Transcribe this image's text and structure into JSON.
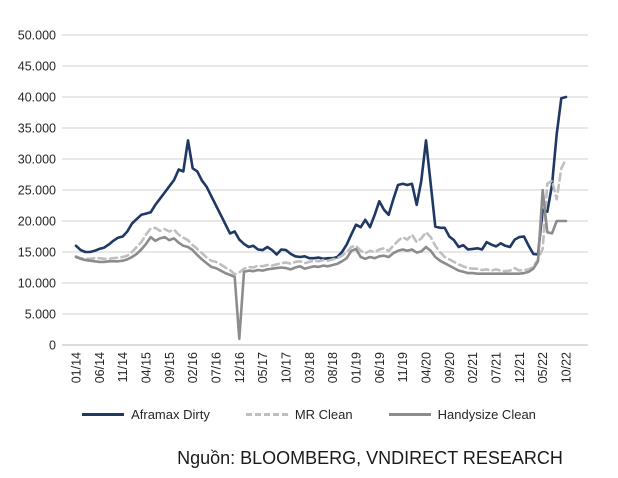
{
  "caption": {
    "text": "Nguồn: BLOOMBERG, VNDIRECT RESEARCH"
  },
  "colors": {
    "grid": "#d9d9d9",
    "baseline": "#c6c6c6",
    "axis_text": "#262626",
    "aframax": "#1f3864",
    "mr_clean": "#bfbfbf",
    "handysize": "#8c8c8c"
  },
  "chart_data": {
    "type": "line",
    "title": "",
    "xlabel": "",
    "ylabel": "",
    "ylim": [
      0,
      50000
    ],
    "grid": "horizontal",
    "legend_position": "bottom",
    "y_tick_values": [
      0,
      5000,
      10000,
      15000,
      20000,
      25000,
      30000,
      35000,
      40000,
      45000,
      50000
    ],
    "y_tick_labels": [
      "0",
      "5.000",
      "10.000",
      "15.000",
      "20.000",
      "25.000",
      "30.000",
      "35.000",
      "40.000",
      "45.000",
      "50.000"
    ],
    "x_tick_step": 5,
    "n_points": 106,
    "x_tick_labels": [
      "01/14",
      "06/14",
      "11/14",
      "04/15",
      "09/15",
      "02/16",
      "07/16",
      "12/16",
      "05/17",
      "10/17",
      "03/18",
      "08/18",
      "01/19",
      "06/19",
      "11/19",
      "04/20",
      "09/20",
      "02/21",
      "07/21",
      "12/21",
      "05/22",
      "10/22"
    ],
    "series": [
      {
        "name": "Aframax Dirty",
        "color": "#1f3864",
        "dash": "solid",
        "values": [
          16000,
          15300,
          15000,
          15000,
          15200,
          15500,
          15700,
          16200,
          16800,
          17300,
          17500,
          18300,
          19600,
          20300,
          21000,
          21200,
          21400,
          22600,
          23600,
          24600,
          25600,
          26600,
          28300,
          28000,
          33000,
          28500,
          28000,
          26500,
          25500,
          24000,
          22500,
          21000,
          19500,
          18000,
          18300,
          17000,
          16300,
          15800,
          16000,
          15400,
          15300,
          15800,
          15300,
          14600,
          15400,
          15300,
          14700,
          14300,
          14200,
          14300,
          14000,
          14000,
          14100,
          13900,
          14000,
          14000,
          14200,
          15000,
          16200,
          17800,
          19400,
          19000,
          20200,
          19000,
          21000,
          23200,
          21800,
          21000,
          23500,
          25800,
          26000,
          25800,
          26000,
          22600,
          26500,
          33000,
          26000,
          19100,
          18900,
          18900,
          17500,
          16900,
          15800,
          16100,
          15400,
          15500,
          15600,
          15400,
          16600,
          16200,
          15900,
          16400,
          16000,
          15800,
          17000,
          17400,
          17500,
          16000,
          14700,
          14600,
          21800,
          21500,
          25800,
          34000,
          39800,
          40000
        ]
      },
      {
        "name": "MR Clean",
        "color": "#bfbfbf",
        "dash": "dashed",
        "values": [
          14300,
          14000,
          13900,
          13900,
          14000,
          14000,
          13900,
          13900,
          14000,
          14100,
          14200,
          14400,
          15000,
          15800,
          16600,
          17800,
          18800,
          18900,
          18400,
          18700,
          18300,
          18600,
          17800,
          17300,
          16900,
          16100,
          15500,
          14800,
          14100,
          13600,
          13400,
          13000,
          12500,
          12100,
          11400,
          11700,
          12300,
          12600,
          12500,
          12800,
          12700,
          12900,
          12800,
          13000,
          13200,
          13300,
          13100,
          13400,
          13500,
          13200,
          13400,
          13600,
          13500,
          13700,
          13600,
          13800,
          14000,
          14400,
          15000,
          15800,
          16000,
          15200,
          14800,
          15200,
          15000,
          15400,
          15600,
          15200,
          16000,
          16800,
          17400,
          17000,
          17800,
          16600,
          17200,
          18200,
          17400,
          16000,
          15000,
          14200,
          13800,
          13400,
          13000,
          12700,
          12400,
          12300,
          12300,
          12100,
          12200,
          12000,
          12200,
          12000,
          11900,
          12000,
          12400,
          12000,
          12100,
          12200,
          12600,
          13800,
          15500,
          26000,
          26500,
          23500,
          28500,
          30000
        ]
      },
      {
        "name": "Handysize Clean",
        "color": "#8c8c8c",
        "dash": "solid",
        "values": [
          14200,
          13900,
          13700,
          13600,
          13500,
          13400,
          13400,
          13500,
          13500,
          13500,
          13600,
          13800,
          14200,
          14700,
          15400,
          16300,
          17400,
          16800,
          17200,
          17400,
          16900,
          17200,
          16500,
          16000,
          15800,
          15300,
          14500,
          13800,
          13200,
          12600,
          12400,
          12000,
          11600,
          11300,
          11000,
          1000,
          11800,
          12000,
          11900,
          12100,
          12000,
          12200,
          12300,
          12400,
          12500,
          12400,
          12200,
          12500,
          12700,
          12300,
          12500,
          12700,
          12600,
          12800,
          12700,
          12900,
          13100,
          13500,
          14000,
          15200,
          15500,
          14200,
          13900,
          14200,
          14000,
          14300,
          14400,
          14200,
          14800,
          15200,
          15400,
          15200,
          15400,
          14900,
          15100,
          15800,
          15200,
          14200,
          13600,
          13200,
          12800,
          12400,
          12000,
          11800,
          11600,
          11600,
          11500,
          11500,
          11500,
          11500,
          11500,
          11500,
          11500,
          11500,
          11500,
          11500,
          11600,
          11800,
          12300,
          13500,
          25000,
          18200,
          18000,
          20000,
          20000,
          20000
        ]
      }
    ]
  }
}
